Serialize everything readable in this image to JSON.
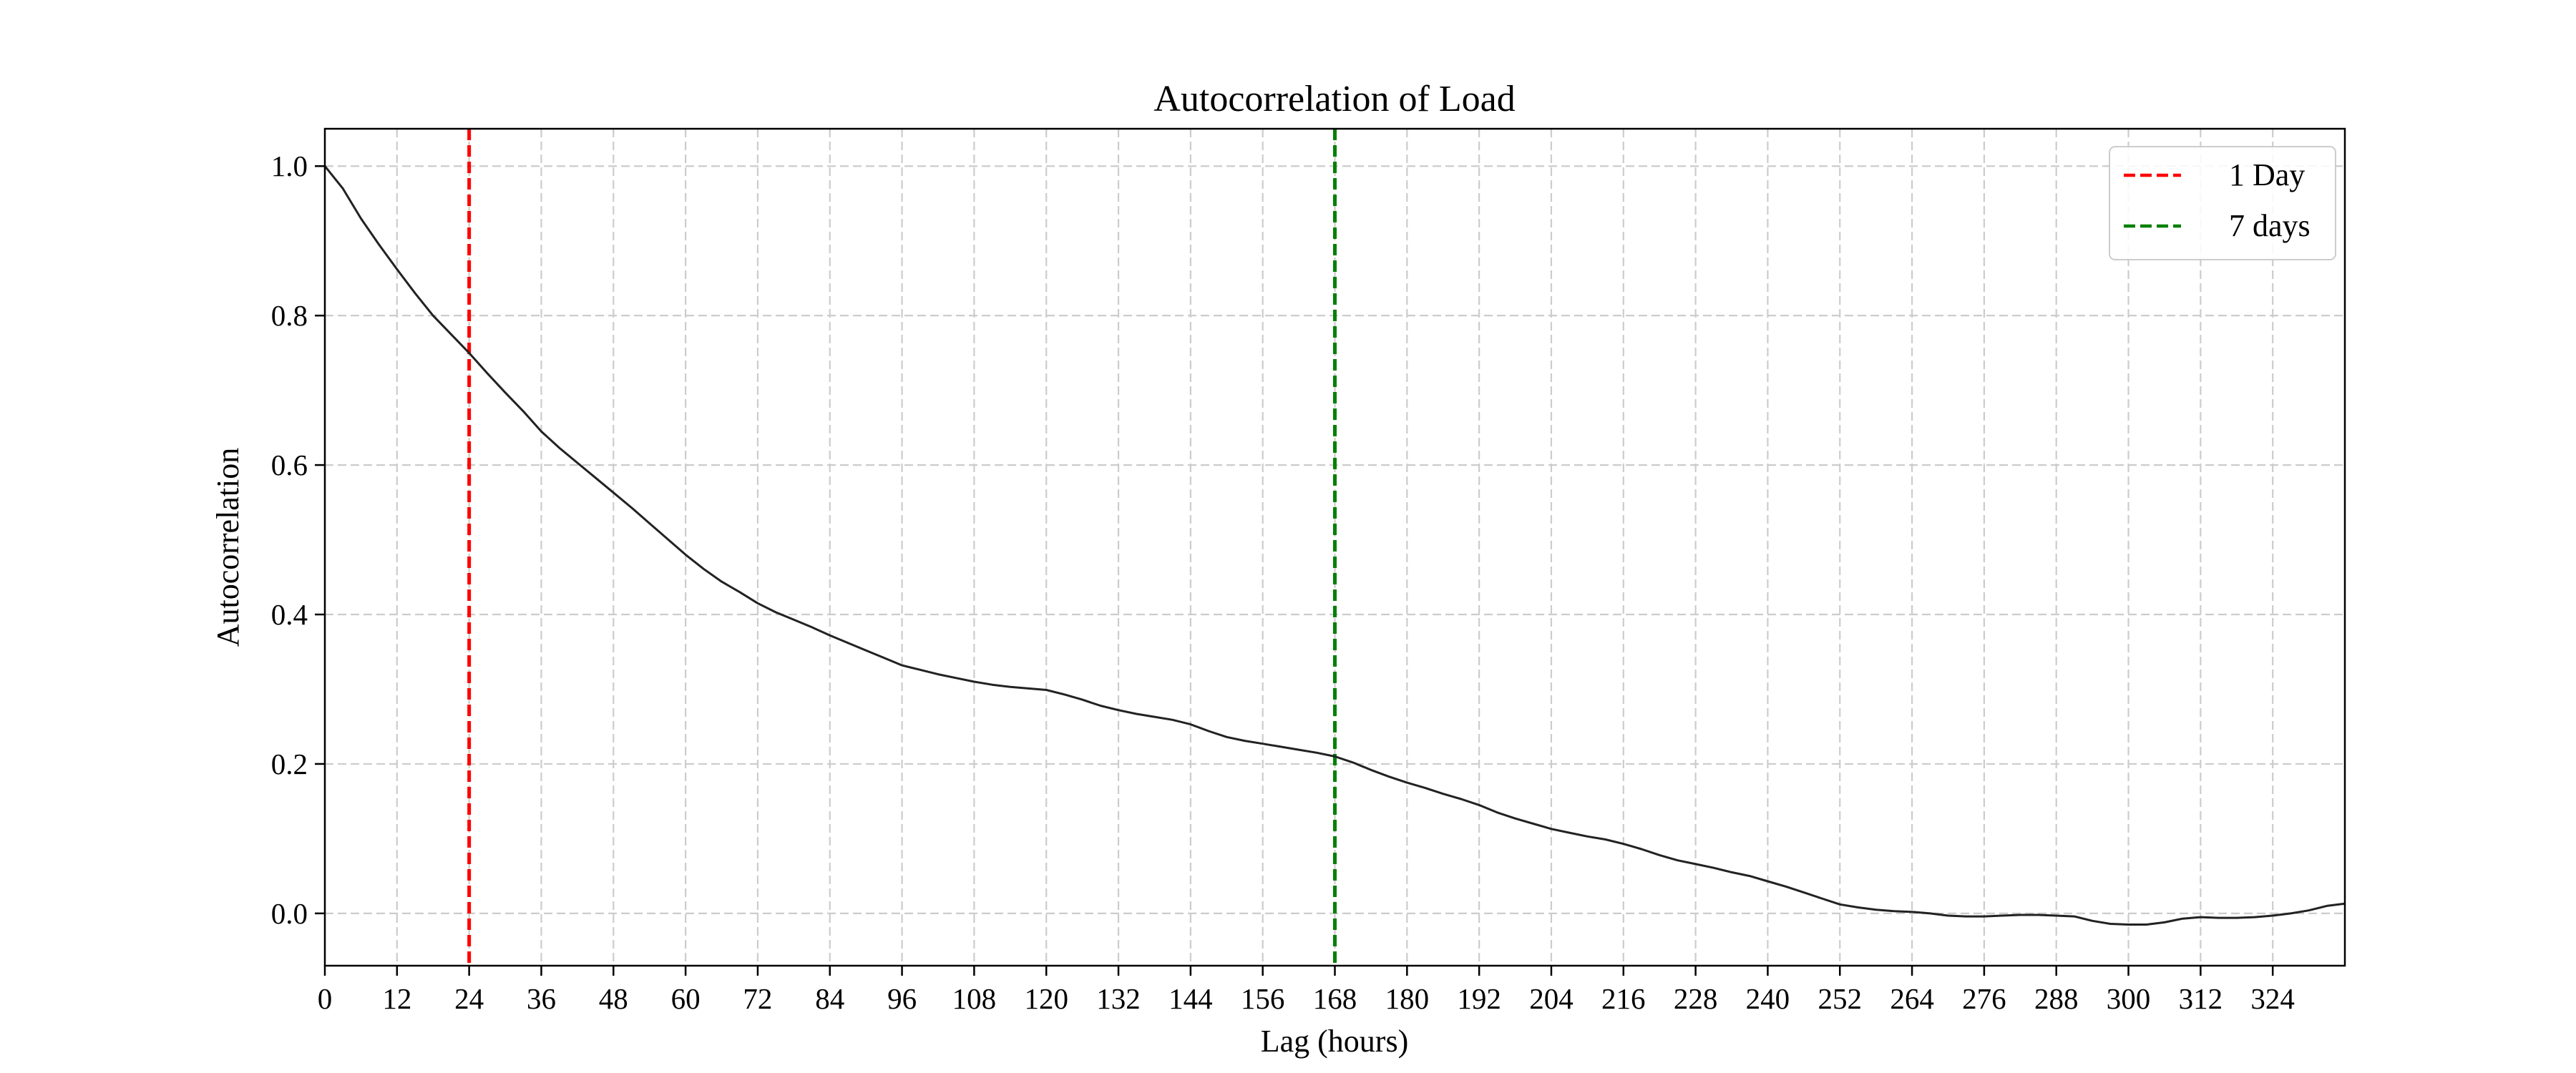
{
  "chart_data": {
    "type": "line",
    "title": "Autocorrelation of Load",
    "xlabel": "Lag (hours)",
    "ylabel": "Autocorrelation",
    "xlim": [
      0,
      336
    ],
    "ylim": [
      -0.07,
      1.05
    ],
    "xticks": [
      0,
      12,
      24,
      36,
      48,
      60,
      72,
      84,
      96,
      108,
      120,
      132,
      144,
      156,
      168,
      180,
      192,
      204,
      216,
      228,
      240,
      252,
      264,
      276,
      288,
      300,
      312,
      324
    ],
    "yticks": [
      0.0,
      0.2,
      0.4,
      0.6,
      0.8,
      1.0
    ],
    "ytick_labels": [
      "0.0",
      "0.2",
      "0.4",
      "0.6",
      "0.8",
      "1.0"
    ],
    "grid": true,
    "legend_position": "top-right",
    "series": [
      {
        "color": "#222222",
        "x": [
          0,
          3,
          6,
          9,
          12,
          15,
          18,
          21,
          24,
          27,
          30,
          33,
          36,
          39,
          42,
          45,
          48,
          51,
          54,
          57,
          60,
          63,
          66,
          69,
          72,
          75,
          78,
          81,
          84,
          87,
          90,
          93,
          96,
          99,
          102,
          105,
          108,
          111,
          114,
          117,
          120,
          123,
          126,
          129,
          132,
          135,
          138,
          141,
          144,
          147,
          150,
          153,
          156,
          159,
          162,
          165,
          168,
          171,
          174,
          177,
          180,
          183,
          186,
          189,
          192,
          195,
          198,
          201,
          204,
          207,
          210,
          213,
          216,
          219,
          222,
          225,
          228,
          231,
          234,
          237,
          240,
          243,
          246,
          249,
          252,
          255,
          258,
          261,
          264,
          267,
          270,
          273,
          276,
          279,
          282,
          285,
          288,
          291,
          294,
          297,
          300,
          303,
          306,
          309,
          312,
          315,
          318,
          321,
          324,
          327,
          330,
          333,
          336
        ],
        "values": [
          1.0,
          0.97,
          0.93,
          0.895,
          0.862,
          0.83,
          0.8,
          0.775,
          0.75,
          0.723,
          0.697,
          0.672,
          0.645,
          0.623,
          0.603,
          0.583,
          0.563,
          0.543,
          0.522,
          0.501,
          0.48,
          0.461,
          0.444,
          0.43,
          0.415,
          0.403,
          0.393,
          0.383,
          0.372,
          0.362,
          0.352,
          0.342,
          0.332,
          0.326,
          0.32,
          0.315,
          0.31,
          0.306,
          0.303,
          0.301,
          0.299,
          0.293,
          0.286,
          0.278,
          0.272,
          0.267,
          0.263,
          0.259,
          0.253,
          0.244,
          0.236,
          0.231,
          0.227,
          0.223,
          0.219,
          0.215,
          0.21,
          0.202,
          0.192,
          0.183,
          0.175,
          0.168,
          0.16,
          0.153,
          0.145,
          0.135,
          0.127,
          0.12,
          0.113,
          0.108,
          0.103,
          0.099,
          0.093,
          0.086,
          0.078,
          0.071,
          0.066,
          0.061,
          0.055,
          0.05,
          0.043,
          0.036,
          0.028,
          0.02,
          0.012,
          0.008,
          0.005,
          0.003,
          0.002,
          0.0,
          -0.003,
          -0.004,
          -0.004,
          -0.003,
          -0.002,
          -0.002,
          -0.003,
          -0.004,
          -0.01,
          -0.014,
          -0.015,
          -0.015,
          -0.012,
          -0.007,
          -0.005,
          -0.006,
          -0.006,
          -0.005,
          -0.003,
          0.0,
          0.004,
          0.01,
          0.013
        ]
      }
    ],
    "vlines": [
      {
        "name": "1 Day",
        "x": 24,
        "color": "#ff0000"
      },
      {
        "name": "7 days",
        "x": 168,
        "color": "#008000"
      }
    ]
  }
}
